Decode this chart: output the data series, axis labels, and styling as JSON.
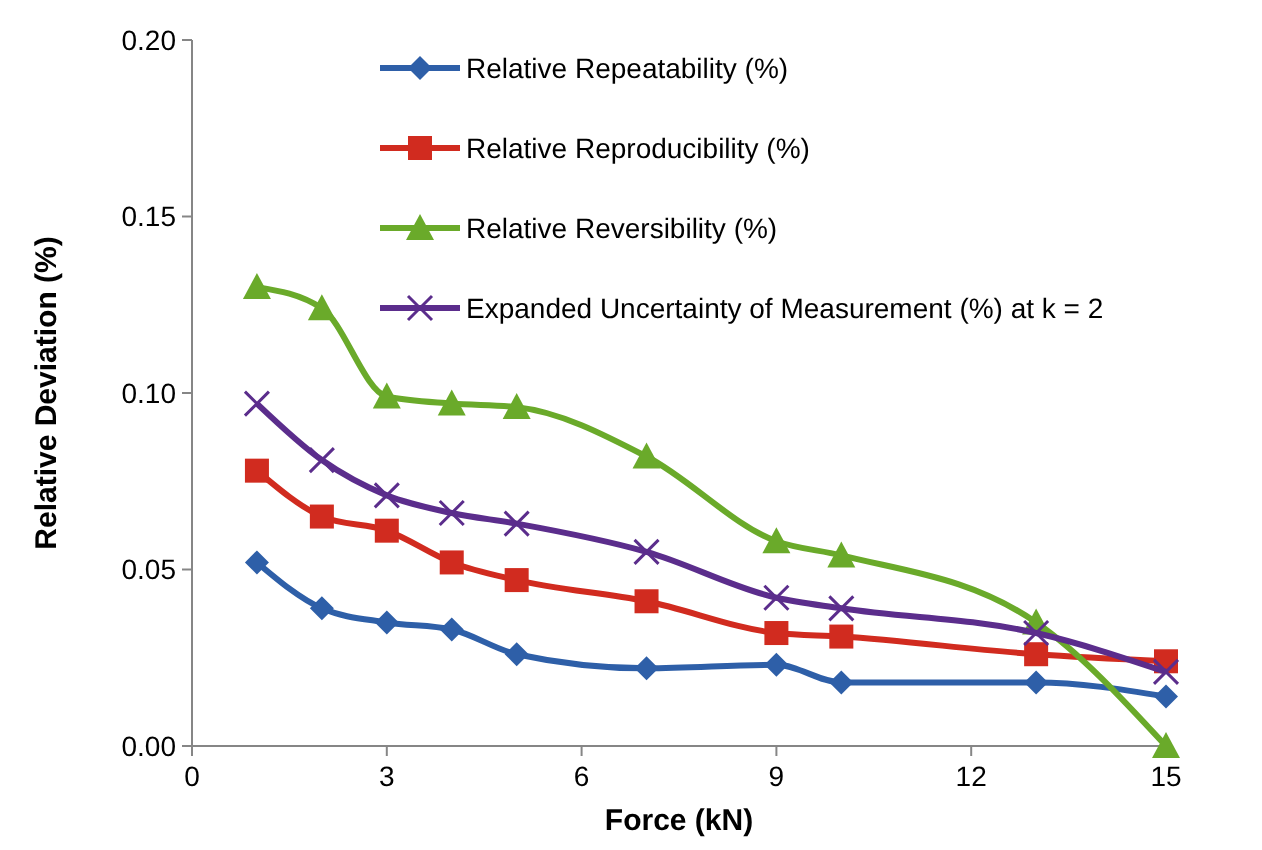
{
  "chart_data": {
    "type": "line",
    "xlabel": "Force (kN)",
    "ylabel": "Relative Deviation (%)",
    "x": [
      1,
      2,
      3,
      4,
      5,
      7,
      9,
      10,
      13,
      15
    ],
    "xlim": [
      0,
      15
    ],
    "xticks": [
      0,
      3,
      6,
      9,
      12,
      15
    ],
    "ylim": [
      0,
      0.2
    ],
    "yticks": [
      {
        "value": 0,
        "label": "0.00"
      },
      {
        "value": 0.05,
        "label": "0.05"
      },
      {
        "value": 0.1,
        "label": "0.10"
      },
      {
        "value": 0.15,
        "label": "0.15"
      },
      {
        "value": 0.2,
        "label": "0.20"
      }
    ],
    "grid": false,
    "legend": "top",
    "series": [
      {
        "name": "Relative Repeatability (%)",
        "color": "#2e5fa8",
        "marker": "diamond",
        "values": [
          0.052,
          0.039,
          0.035,
          0.033,
          0.026,
          0.022,
          0.023,
          0.018,
          0.018,
          0.014
        ]
      },
      {
        "name": "Relative Reproducibility (%)",
        "color": "#d12b1f",
        "marker": "square",
        "values": [
          0.078,
          0.065,
          0.061,
          0.052,
          0.047,
          0.041,
          0.032,
          0.031,
          0.026,
          0.024
        ]
      },
      {
        "name": "Relative Reversibility (%)",
        "color": "#6aaa2a",
        "marker": "triangle",
        "values": [
          0.13,
          0.124,
          0.099,
          0.097,
          0.096,
          0.082,
          0.058,
          0.054,
          0.035,
          0.0
        ]
      },
      {
        "name": "Expanded Uncertainty of Measurement (%) at k = 2",
        "color": "#5b2d8c",
        "marker": "cross",
        "values": [
          0.097,
          0.081,
          0.071,
          0.066,
          0.063,
          0.055,
          0.042,
          0.039,
          0.032,
          0.021
        ]
      }
    ]
  }
}
